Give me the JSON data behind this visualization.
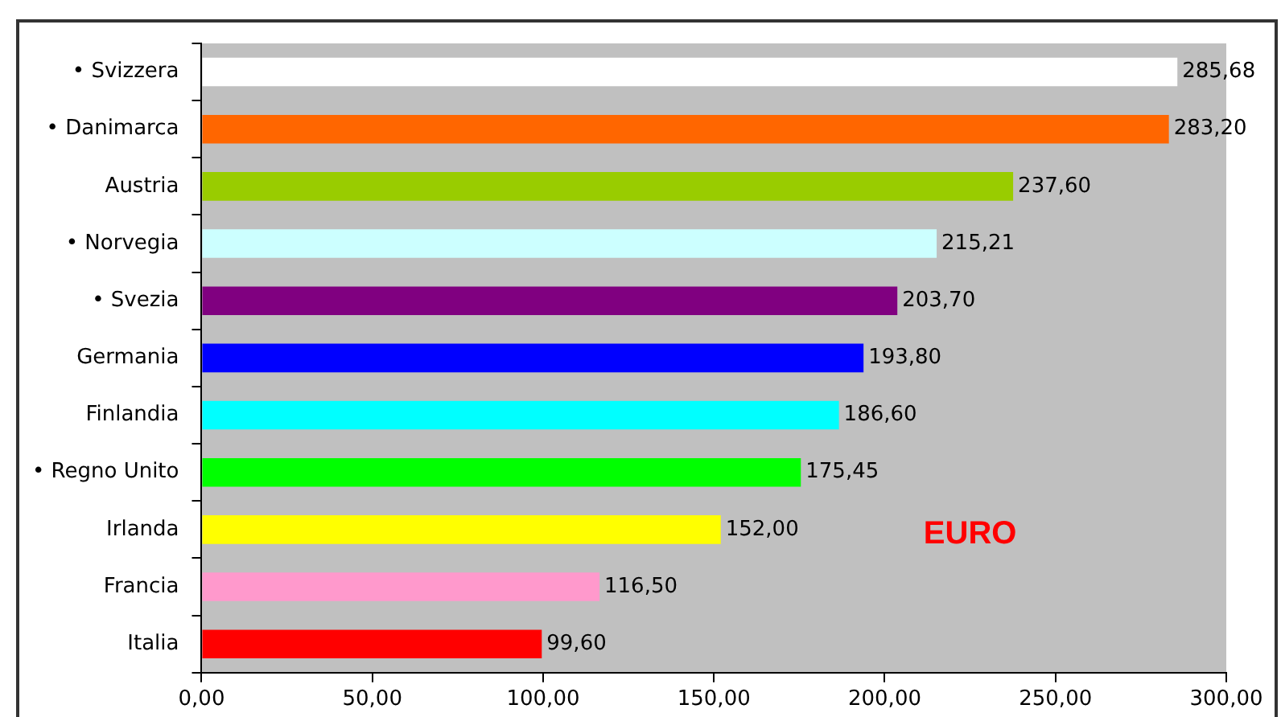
{
  "chart_data": {
    "type": "bar",
    "orientation": "horizontal",
    "categories": [
      "• Svizzera",
      "• Danimarca",
      "Austria",
      "• Norvegia",
      "• Svezia",
      "Germania",
      "Finlandia",
      "• Regno Unito",
      "Irlanda",
      "Francia",
      "Italia"
    ],
    "values": [
      285.68,
      283.2,
      237.6,
      215.21,
      203.7,
      193.8,
      186.6,
      175.45,
      152.0,
      116.5,
      99.6
    ],
    "colors": [
      "#ffffff",
      "#ff6600",
      "#99cc00",
      "#ccffff",
      "#800080",
      "#0000ff",
      "#00ffff",
      "#00ff00",
      "#ffff00",
      "#ff99cc",
      "#ff0000"
    ],
    "value_labels": [
      "285,68",
      "283,20",
      "237,60",
      "215,21",
      "203,70",
      "193,80",
      "186,60",
      "175,45",
      "152,00",
      "116,50",
      "99,60"
    ],
    "xlim": [
      0,
      300
    ],
    "xticks": [
      {
        "value": 0,
        "label": "0,00"
      },
      {
        "value": 50,
        "label": "50,00"
      },
      {
        "value": 100,
        "label": "100,00"
      },
      {
        "value": 150,
        "label": "150,00"
      },
      {
        "value": 200,
        "label": "200,00"
      },
      {
        "value": 250,
        "label": "250,00"
      },
      {
        "value": 300,
        "label": "300,00"
      }
    ],
    "annotations": [
      "EURO"
    ],
    "grid": false,
    "legend": false
  }
}
